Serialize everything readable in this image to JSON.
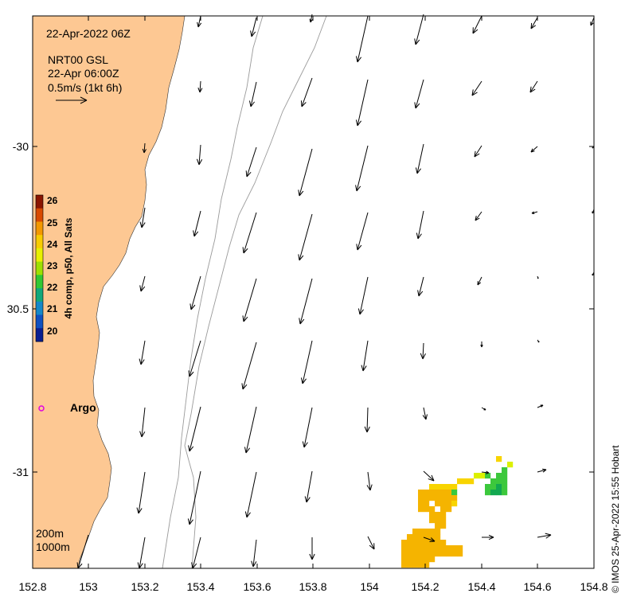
{
  "header": {
    "datetime": "22-Apr-2022 06Z",
    "source": "NRT00 GSL",
    "valid": "22-Apr 06:00Z",
    "scale_label": "0.5m/s (1kt 6h)"
  },
  "axes": {
    "x_ticks": [
      "152.8",
      "153",
      "153.2",
      "153.4",
      "153.6",
      "153.8",
      "154",
      "154.2",
      "154.4",
      "154.6",
      "154.8"
    ],
    "y_ticks": [
      "-30",
      "30.5",
      "-31"
    ],
    "xlim": [
      152.8,
      154.8
    ],
    "ylim": [
      -31.3,
      -29.6
    ]
  },
  "colorbar": {
    "label": "4h comp, p50, All Sats",
    "ticks": [
      "26",
      "25",
      "24",
      "23",
      "22",
      "21",
      "20"
    ],
    "colors": [
      "#8a1500",
      "#d84a00",
      "#f39800",
      "#f8cc00",
      "#e8f000",
      "#9ee000",
      "#32c832",
      "#12a87a",
      "#1588c8",
      "#1050c0",
      "#0a1e90"
    ]
  },
  "isobaths": {
    "shallow": "200m",
    "deep": "1000m"
  },
  "argo": {
    "label": "Argo",
    "color": "#e000e0"
  },
  "credit": "© IMOS 25-Apr-2022 15:55 Hobart",
  "colors": {
    "land": "#fdc893",
    "arrow": "#000000",
    "isobath": "#9a9a9a"
  }
}
